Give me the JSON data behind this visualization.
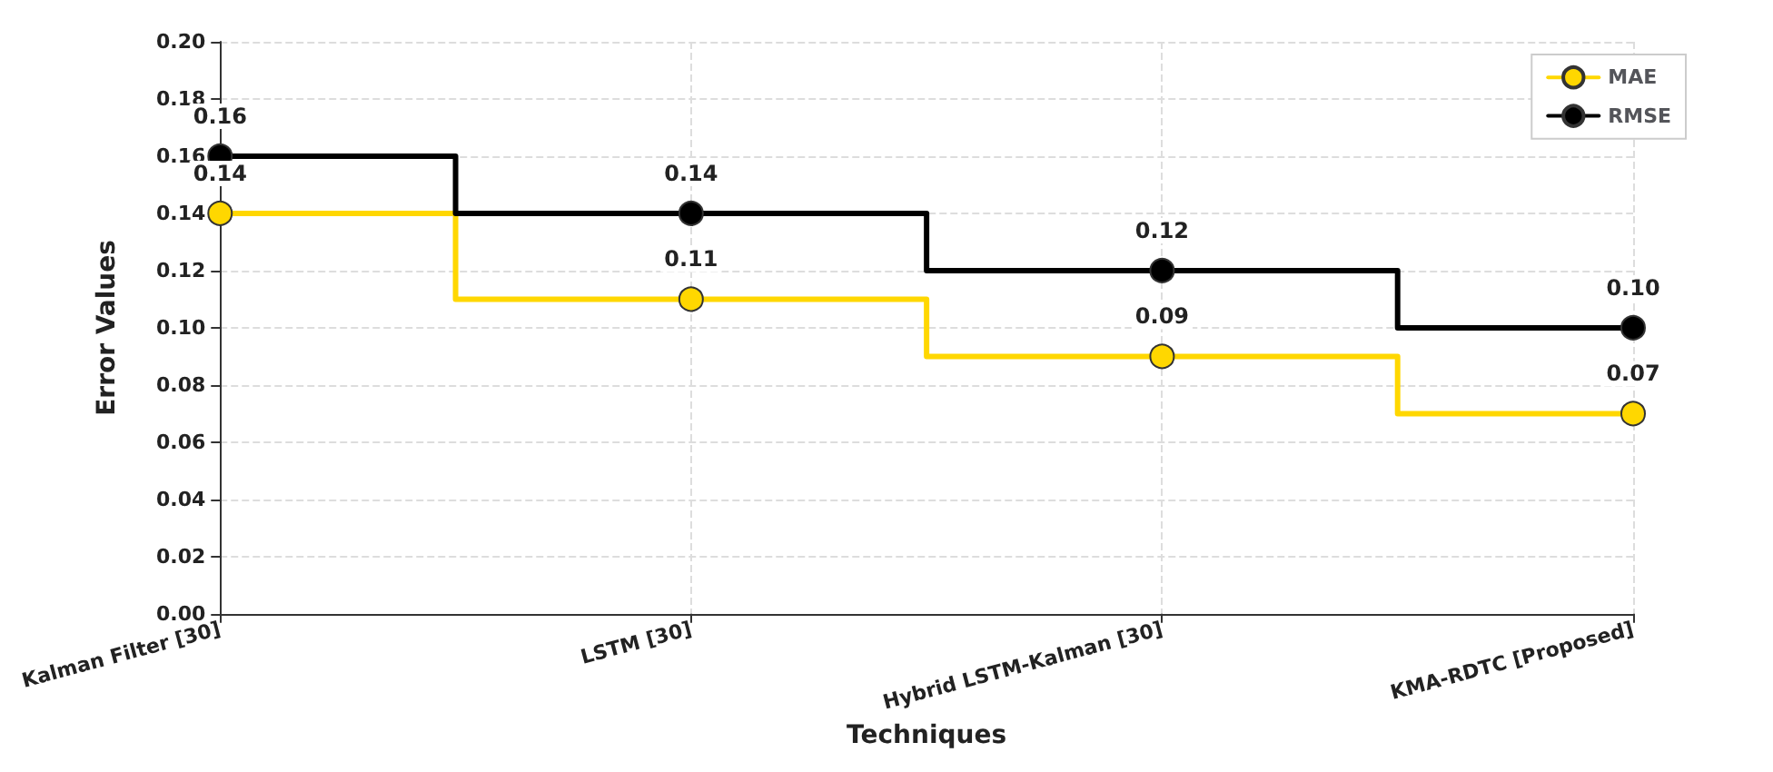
{
  "chart_data": {
    "type": "step",
    "xlabel": "Techniques",
    "ylabel": "Error Values",
    "categories": [
      "Kalman Filter [30]",
      "LSTM [30]",
      "Hybrid LSTM-Kalman [30]",
      "KMA-RDTC [Proposed]"
    ],
    "series": [
      {
        "name": "MAE",
        "color": "#ffd700",
        "values": [
          0.14,
          0.11,
          0.09,
          0.07
        ],
        "value_labels": [
          "0.14",
          "0.11",
          "0.09",
          "0.07"
        ]
      },
      {
        "name": "RMSE",
        "color": "#000000",
        "values": [
          0.16,
          0.14,
          0.12,
          0.1
        ],
        "value_labels": [
          "0.16",
          "0.14",
          "0.12",
          "0.10"
        ]
      }
    ],
    "ylim": [
      0,
      0.2
    ],
    "yticks": [
      {
        "value": 0,
        "label": "0.00"
      },
      {
        "value": 0.02,
        "label": "0.02"
      },
      {
        "value": 0.04,
        "label": "0.04"
      },
      {
        "value": 0.06,
        "label": "0.06"
      },
      {
        "value": 0.08,
        "label": "0.08"
      },
      {
        "value": 0.1,
        "label": "0.10"
      },
      {
        "value": 0.12,
        "label": "0.12"
      },
      {
        "value": 0.14,
        "label": "0.14"
      },
      {
        "value": 0.16,
        "label": "0.16"
      },
      {
        "value": 0.18,
        "label": "0.18"
      },
      {
        "value": 0.2,
        "label": "0.20"
      }
    ],
    "grid": true,
    "legend": "top right",
    "marker": "circle",
    "line_style": "solid"
  }
}
